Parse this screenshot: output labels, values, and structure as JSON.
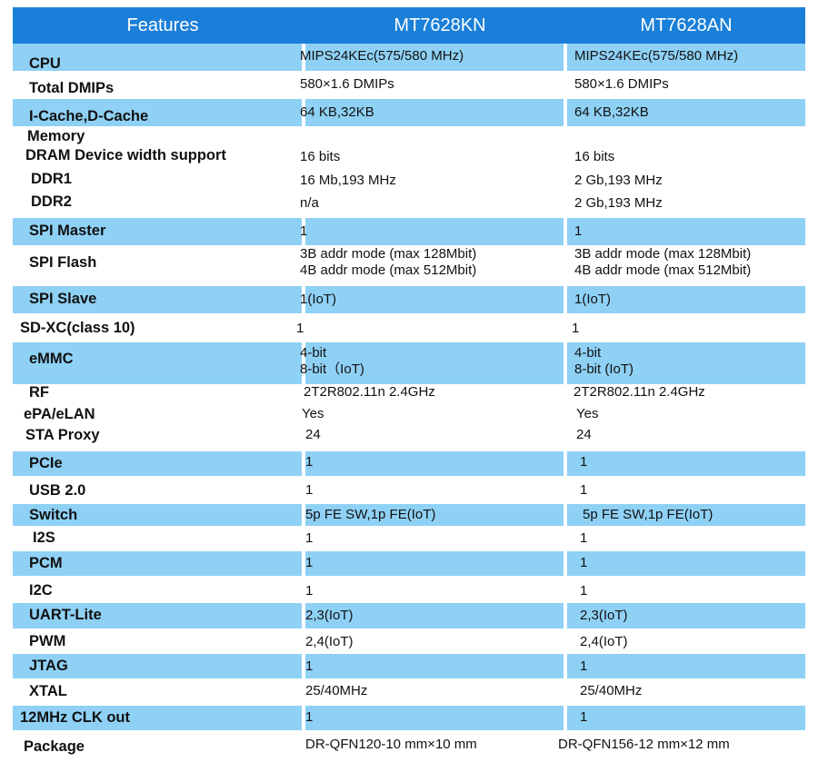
{
  "header": {
    "features": "Features",
    "col_a": "MT7628KN",
    "col_b": "MT7628AN"
  },
  "rows": [
    {
      "feature": "CPU",
      "a": "MIPS24KEc(575/580 MHz)",
      "b": "MIPS24KEc(575/580 MHz)"
    },
    {
      "feature": "Total DMIPs",
      "a": "580×1.6 DMIPs",
      "b": "580×1.6 DMIPs"
    },
    {
      "feature": "I-Cache,D-Cache",
      "a": "64 KB,32KB",
      "b": "64 KB,32KB"
    },
    {
      "feature": "Memory"
    },
    {
      "feature": "DRAM Device width support",
      "a": "16 bits",
      "b": "16 bits"
    },
    {
      "feature": "DDR1",
      "a": "16 Mb,193 MHz",
      "b": "2 Gb,193 MHz"
    },
    {
      "feature": "DDR2",
      "a": "n/a",
      "b": "2 Gb,193 MHz"
    },
    {
      "feature": "SPI Master",
      "a": "1",
      "b": "1"
    },
    {
      "feature": "SPI Flash",
      "a": "3B addr mode (max 128Mbit)",
      "a2": "4B addr mode (max 512Mbit)",
      "b": "3B addr mode (max 128Mbit)",
      "b2": "4B addr mode (max 512Mbit)"
    },
    {
      "feature": "SPI Slave",
      "a": "1(IoT)",
      "b": "1(IoT)"
    },
    {
      "feature": "SD-XC(class 10)",
      "a": "1",
      "b": "1"
    },
    {
      "feature": "eMMC",
      "a": "4-bit",
      "a2": "8-bit（IoT)",
      "b": "4-bit",
      "b2": "8-bit (IoT)"
    },
    {
      "feature": "RF",
      "a": "2T2R802.11n 2.4GHz",
      "b": "2T2R802.11n 2.4GHz"
    },
    {
      "feature": "ePA/eLAN",
      "a": "Yes",
      "b": "Yes"
    },
    {
      "feature": "STA Proxy",
      "a": "24",
      "b": "24"
    },
    {
      "feature": "PCIe",
      "a": "1",
      "b": "1"
    },
    {
      "feature": "USB 2.0",
      "a": "1",
      "b": "1"
    },
    {
      "feature": "Switch",
      "a": "5p FE SW,1p FE(IoT)",
      "b": "5p FE SW,1p FE(IoT)"
    },
    {
      "feature": "I2S",
      "a": "1",
      "b": "1"
    },
    {
      "feature": "PCM",
      "a": "1",
      "b": "1"
    },
    {
      "feature": "I2C",
      "a": "1",
      "b": "1"
    },
    {
      "feature": "UART-Lite",
      "a": "2,3(IoT)",
      "b": "2,3(IoT)"
    },
    {
      "feature": "PWM",
      "a": "2,4(IoT)",
      "b": "2,4(IoT)"
    },
    {
      "feature": "JTAG",
      "a": "1",
      "b": "1"
    },
    {
      "feature": "XTAL",
      "a": "25/40MHz",
      "b": "25/40MHz"
    },
    {
      "feature": "12MHz CLK out",
      "a": "1",
      "b": "1"
    },
    {
      "feature": "Package",
      "a": "DR-QFN120-10 mm×10 mm",
      "b": "DR-QFN156-12 mm×12 mm"
    }
  ],
  "colors": {
    "header_bg": "#1a7fd8",
    "row_highlight": "#8fd1f5"
  }
}
